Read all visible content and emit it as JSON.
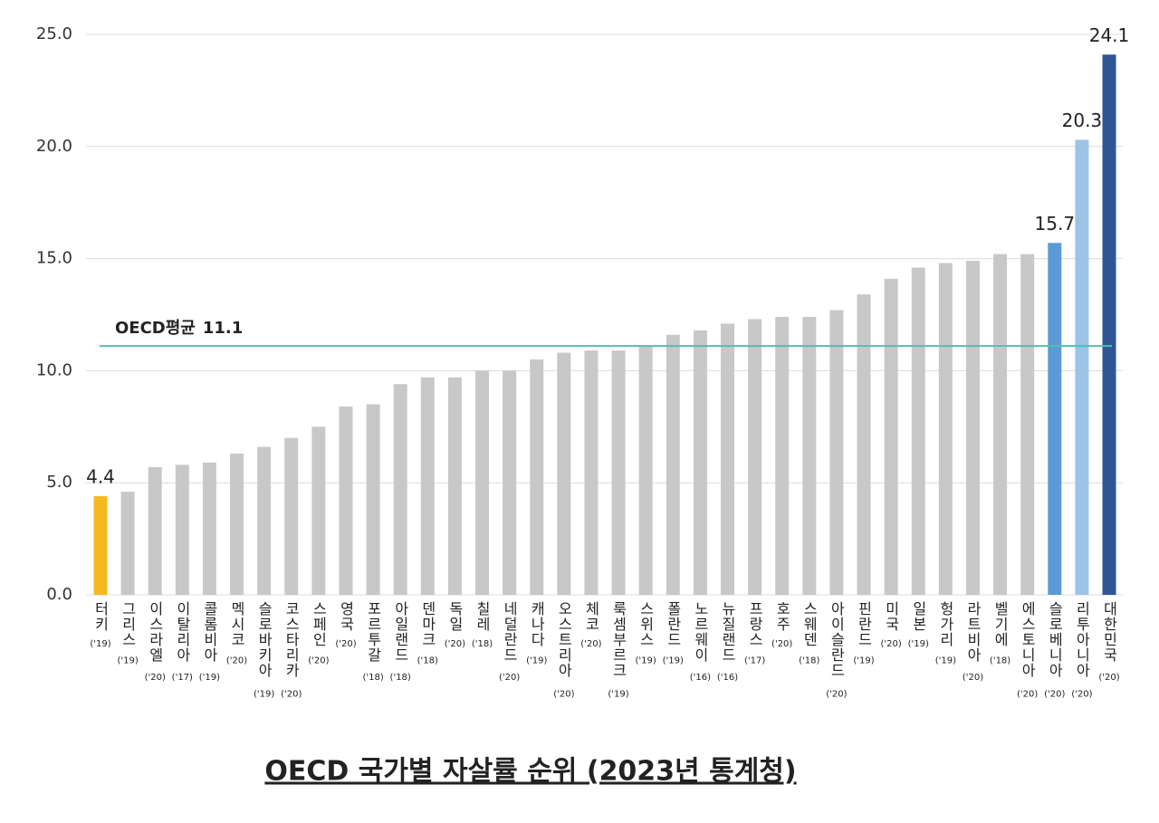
{
  "chart_data": {
    "type": "bar",
    "title": "OECD 국가별 자살률 순위 (2023년 통계청)",
    "categories": [
      "터키",
      "그리스",
      "이스라엘",
      "이탈리아",
      "콜롬비아",
      "멕시코",
      "슬로바키아",
      "코스타리카",
      "스페인",
      "영국",
      "포르투갈",
      "아일랜드",
      "덴마크",
      "독일",
      "칠레",
      "네덜란드",
      "캐나다",
      "오스트리아",
      "체코",
      "룩셈부르크",
      "스위스",
      "폴란드",
      "노르웨이",
      "뉴질랜드",
      "프랑스",
      "호주",
      "스웨덴",
      "아이슬란드",
      "핀란드",
      "미국",
      "일본",
      "헝가리",
      "라트비아",
      "벨기에",
      "에스토니아",
      "슬로베니아",
      "리투아니아",
      "대한민국"
    ],
    "years": [
      "('19)",
      "('19)",
      "('20)",
      "('17)",
      "('19)",
      "('20)",
      "('19)",
      "('20)",
      "('20)",
      "('20)",
      "('18)",
      "('18)",
      "('18)",
      "('20)",
      "('18)",
      "('20)",
      "('19)",
      "('20)",
      "('20)",
      "('19)",
      "('19)",
      "('19)",
      "('16)",
      "('16)",
      "('17)",
      "('20)",
      "('18)",
      "('20)",
      "('19)",
      "('20)",
      "('19)",
      "('19)",
      "('20)",
      "('18)",
      "('20)",
      "('20)",
      "('20)",
      "('20)"
    ],
    "values": [
      4.4,
      4.6,
      5.7,
      5.8,
      5.9,
      6.3,
      6.6,
      7.0,
      7.5,
      8.4,
      8.5,
      9.4,
      9.7,
      9.7,
      10.0,
      10.0,
      10.5,
      10.8,
      10.9,
      10.9,
      11.1,
      11.6,
      11.8,
      12.1,
      12.3,
      12.4,
      12.4,
      12.7,
      13.4,
      14.1,
      14.6,
      14.8,
      14.9,
      15.2,
      15.2,
      15.7,
      20.3,
      24.1
    ],
    "value_labels": [
      "4.4",
      null,
      null,
      null,
      null,
      null,
      null,
      null,
      null,
      null,
      null,
      null,
      null,
      null,
      null,
      null,
      null,
      null,
      null,
      null,
      null,
      null,
      null,
      null,
      null,
      null,
      null,
      null,
      null,
      null,
      null,
      null,
      null,
      null,
      null,
      "15.7",
      "20.3",
      "24.1"
    ],
    "colors": [
      "#f5b820",
      "#c8c8c8",
      "#c8c8c8",
      "#c8c8c8",
      "#c8c8c8",
      "#c8c8c8",
      "#c8c8c8",
      "#c8c8c8",
      "#c8c8c8",
      "#c8c8c8",
      "#c8c8c8",
      "#c8c8c8",
      "#c8c8c8",
      "#c8c8c8",
      "#c8c8c8",
      "#c8c8c8",
      "#c8c8c8",
      "#c8c8c8",
      "#c8c8c8",
      "#c8c8c8",
      "#c8c8c8",
      "#c8c8c8",
      "#c8c8c8",
      "#c8c8c8",
      "#c8c8c8",
      "#c8c8c8",
      "#c8c8c8",
      "#c8c8c8",
      "#c8c8c8",
      "#c8c8c8",
      "#c8c8c8",
      "#c8c8c8",
      "#c8c8c8",
      "#c8c8c8",
      "#c8c8c8",
      "#5b9bd5",
      "#9dc3e6",
      "#2f5597"
    ],
    "ylim": [
      0,
      25
    ],
    "yticks": [
      {
        "value": 0,
        "label": "0.0"
      },
      {
        "value": 5,
        "label": "5.0"
      },
      {
        "value": 10,
        "label": "10.0"
      },
      {
        "value": 15,
        "label": "15.0"
      },
      {
        "value": 20,
        "label": "20.0"
      },
      {
        "value": 25,
        "label": "25.0"
      }
    ],
    "grid": true,
    "reference_line": {
      "label": "OECD평균",
      "value": 11.1,
      "color": "#4fbfb5"
    }
  }
}
